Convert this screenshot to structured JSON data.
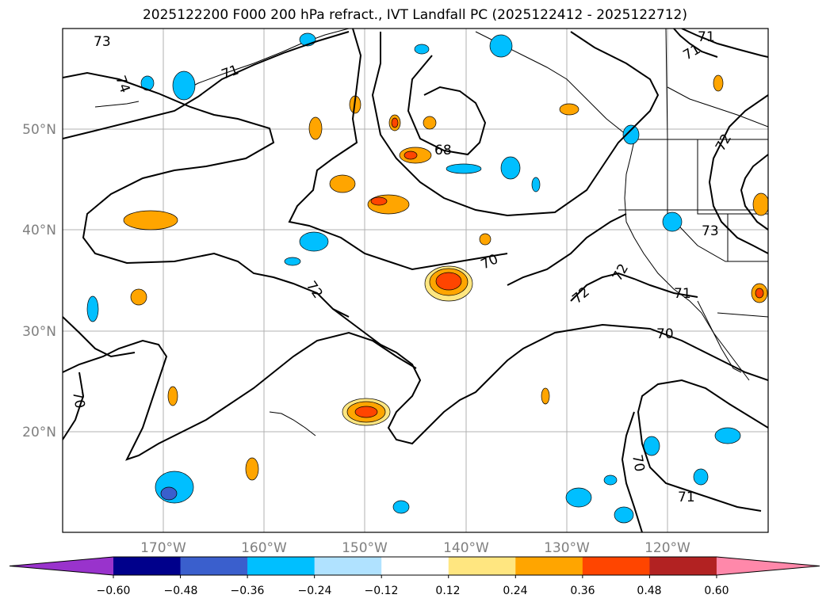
{
  "title": "2025122200 F000 200 hPa refract., IVT Landfall PC (2025122412 - 2025122712)",
  "map": {
    "lon_ticks": [
      "170°W",
      "160°W",
      "150°W",
      "140°W",
      "130°W",
      "120°W"
    ],
    "lat_ticks": [
      "50°N",
      "40°N",
      "30°N",
      "20°N"
    ],
    "grid": true
  },
  "contour_labels": [
    "73",
    "74",
    "71",
    "71",
    "71",
    "68",
    "70",
    "72",
    "72",
    "72",
    "73",
    "71",
    "70",
    "70",
    "70",
    "71",
    "72"
  ],
  "colorbar": {
    "ticks": [
      "−0.60",
      "−0.48",
      "−0.36",
      "−0.24",
      "−0.12",
      "0.12",
      "0.24",
      "0.36",
      "0.48",
      "0.60"
    ],
    "colors": [
      "#9933cc",
      "#00008b",
      "#3a5fcd",
      "#00bfff",
      "#b0e2ff",
      "#ffffff",
      "#ffe680",
      "#ffa500",
      "#ff4500",
      "#b22222",
      "#ff88aa"
    ],
    "extend": "both"
  }
}
